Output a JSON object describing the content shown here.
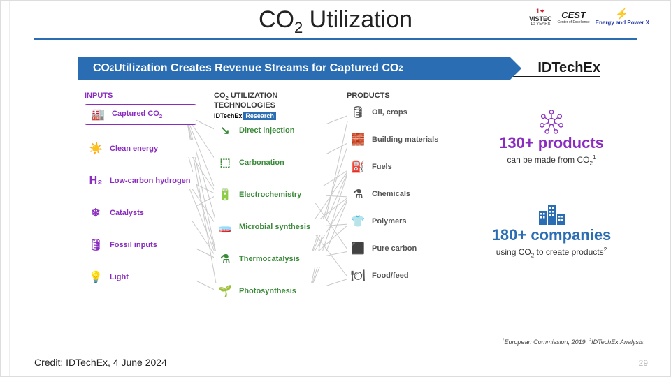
{
  "title": "CO₂ Utilization",
  "title_plain": "CO2 Utilization",
  "logos": {
    "vistec": "VISTEC",
    "vistec_sub": "10 YEARS",
    "cest": "CEST",
    "epx": "Energy and Power X"
  },
  "banner": {
    "text": "CO₂ Utilization Creates Revenue Streams for Captured CO₂",
    "brand": "IDTechEx"
  },
  "columns": {
    "inputs": {
      "header": "INPUTS",
      "items": [
        {
          "icon": "🏭",
          "label": "Captured CO₂",
          "main": true
        },
        {
          "icon": "☀️",
          "label": "Clean energy"
        },
        {
          "icon": "H₂",
          "label": "Low-carbon hydrogen"
        },
        {
          "icon": "❄",
          "label": "Catalysts"
        },
        {
          "icon": "🛢",
          "label": "Fossil inputs"
        },
        {
          "icon": "💡",
          "label": "Light"
        }
      ],
      "color": "#8a2dbf"
    },
    "tech": {
      "header": "CO₂ UTILIZATION TECHNOLOGIES",
      "tag_left": "IDTechEx",
      "tag_right": "Research",
      "items": [
        {
          "icon": "↘",
          "label": "Direct injection"
        },
        {
          "icon": "⬚",
          "label": "Carbonation"
        },
        {
          "icon": "🔋",
          "label": "Electrochemistry"
        },
        {
          "icon": "🧫",
          "label": "Microbial synthesis"
        },
        {
          "icon": "⚗",
          "label": "Thermocatalysis"
        },
        {
          "icon": "🌱",
          "label": "Photosynthesis"
        }
      ],
      "color": "#3a8a3a"
    },
    "products": {
      "header": "PRODUCTS",
      "items": [
        {
          "icon": "🛢",
          "label": "Oil, crops"
        },
        {
          "icon": "🧱",
          "label": "Building materials"
        },
        {
          "icon": "⛽",
          "label": "Fuels"
        },
        {
          "icon": "⚗",
          "label": "Chemicals"
        },
        {
          "icon": "👕",
          "label": "Polymers"
        },
        {
          "icon": "⬛",
          "label": "Pure carbon"
        },
        {
          "icon": "🍽",
          "label": "Food/feed"
        }
      ],
      "color": "#555555"
    }
  },
  "edges": {
    "color": "#c9c9c9",
    "width": 1,
    "inputs_to_tech": [
      [
        0,
        0
      ],
      [
        0,
        1
      ],
      [
        0,
        2
      ],
      [
        0,
        3
      ],
      [
        0,
        4
      ],
      [
        0,
        5
      ],
      [
        1,
        2
      ],
      [
        1,
        4
      ],
      [
        2,
        2
      ],
      [
        2,
        3
      ],
      [
        2,
        4
      ],
      [
        3,
        2
      ],
      [
        3,
        4
      ],
      [
        4,
        4
      ],
      [
        5,
        5
      ]
    ],
    "tech_to_products": [
      [
        0,
        0
      ],
      [
        1,
        1
      ],
      [
        2,
        2
      ],
      [
        2,
        3
      ],
      [
        2,
        5
      ],
      [
        3,
        2
      ],
      [
        3,
        3
      ],
      [
        3,
        4
      ],
      [
        3,
        6
      ],
      [
        4,
        1
      ],
      [
        4,
        2
      ],
      [
        4,
        3
      ],
      [
        4,
        4
      ],
      [
        4,
        5
      ],
      [
        5,
        0
      ],
      [
        5,
        2
      ],
      [
        5,
        3
      ],
      [
        5,
        6
      ]
    ]
  },
  "stats": [
    {
      "icon": "✻",
      "headline": "130+ products",
      "sub": "can be made from CO₂¹",
      "color": "#8a2dbf"
    },
    {
      "icon": "🏢",
      "headline": "180+ companies",
      "sub": "using CO₂ to create products²",
      "color": "#2a6db3"
    }
  ],
  "footnote": "¹European Commission, 2019; ²IDTechEx Analysis.",
  "credit": "Credit: IDTechEx, 4 June 2024",
  "page_number": "29"
}
